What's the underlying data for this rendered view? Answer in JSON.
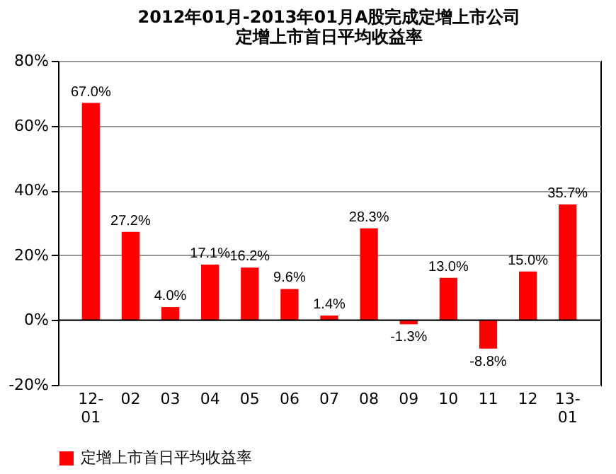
{
  "chart_data": {
    "type": "bar",
    "title": "2012年01月-2013年01月A股完成定增上市公司",
    "subtitle": "定增上市首日平均收益率",
    "categories": [
      "12-01",
      "02",
      "03",
      "04",
      "05",
      "06",
      "07",
      "08",
      "09",
      "10",
      "11",
      "12",
      "13-01"
    ],
    "series": [
      {
        "name": "定增上市首日平均收益率",
        "color": "#ff0000",
        "values": [
          67.0,
          27.2,
          4.0,
          17.1,
          16.2,
          9.6,
          1.4,
          28.3,
          -1.3,
          13.0,
          -8.8,
          15.0,
          35.7
        ],
        "value_labels": [
          "67.0%",
          "27.2%",
          "4.0%",
          "17.1%",
          "16.2%",
          "9.6%",
          "1.4%",
          "28.3%",
          "-1.3%",
          "13.0%",
          "-8.8%",
          "15.0%",
          "35.7%"
        ]
      }
    ],
    "ylim": [
      -20,
      80
    ],
    "yticks": [
      {
        "value": -20,
        "label": "-20%"
      },
      {
        "value": 0,
        "label": "0%"
      },
      {
        "value": 20,
        "label": "20%"
      },
      {
        "value": 40,
        "label": "40%"
      },
      {
        "value": 60,
        "label": "60%"
      },
      {
        "value": 80,
        "label": "80%"
      }
    ],
    "grid": "y",
    "legend": "bottom"
  }
}
